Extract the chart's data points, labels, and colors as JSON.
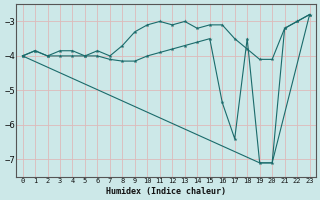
{
  "xlabel": "Humidex (Indice chaleur)",
  "bg_color": "#cce8e8",
  "grid_color": "#aacccc",
  "line_color": "#1a6b6b",
  "xlim": [
    -0.5,
    23.5
  ],
  "ylim": [
    -7.5,
    -2.5
  ],
  "yticks": [
    -7,
    -6,
    -5,
    -4,
    -3
  ],
  "xticks": [
    0,
    1,
    2,
    3,
    4,
    5,
    6,
    7,
    8,
    9,
    10,
    11,
    12,
    13,
    14,
    15,
    16,
    17,
    18,
    19,
    20,
    21,
    22,
    23
  ],
  "line1_x": [
    0,
    1,
    2,
    3,
    4,
    5,
    6,
    7,
    8,
    9,
    10,
    11,
    12,
    13,
    14,
    15,
    16,
    17,
    18,
    19,
    20,
    21,
    22,
    23
  ],
  "line1_y": [
    -4.0,
    -3.85,
    -4.0,
    -3.85,
    -3.85,
    -4.0,
    -3.85,
    -4.0,
    -3.7,
    -3.3,
    -3.1,
    -3.0,
    -3.1,
    -3.0,
    -3.2,
    -3.1,
    -3.1,
    -3.5,
    -3.8,
    -4.1,
    -4.1,
    -3.2,
    -3.0,
    -2.8
  ],
  "line2_x": [
    0,
    1,
    2,
    3,
    4,
    5,
    6,
    7,
    8,
    9,
    10,
    11,
    12,
    13,
    14,
    15,
    16,
    17,
    18,
    19,
    20,
    21,
    22,
    23
  ],
  "line2_y": [
    -4.0,
    -3.85,
    -4.0,
    -4.0,
    -4.0,
    -4.0,
    -4.0,
    -4.1,
    -4.15,
    -4.15,
    -4.0,
    -3.9,
    -3.8,
    -3.7,
    -3.6,
    -3.5,
    -5.35,
    -6.4,
    -3.5,
    -7.1,
    -7.1,
    -3.2,
    -3.0,
    -2.8
  ],
  "line3_x": [
    0,
    19,
    20,
    23
  ],
  "line3_y": [
    -4.0,
    -7.1,
    -7.1,
    -2.8
  ]
}
